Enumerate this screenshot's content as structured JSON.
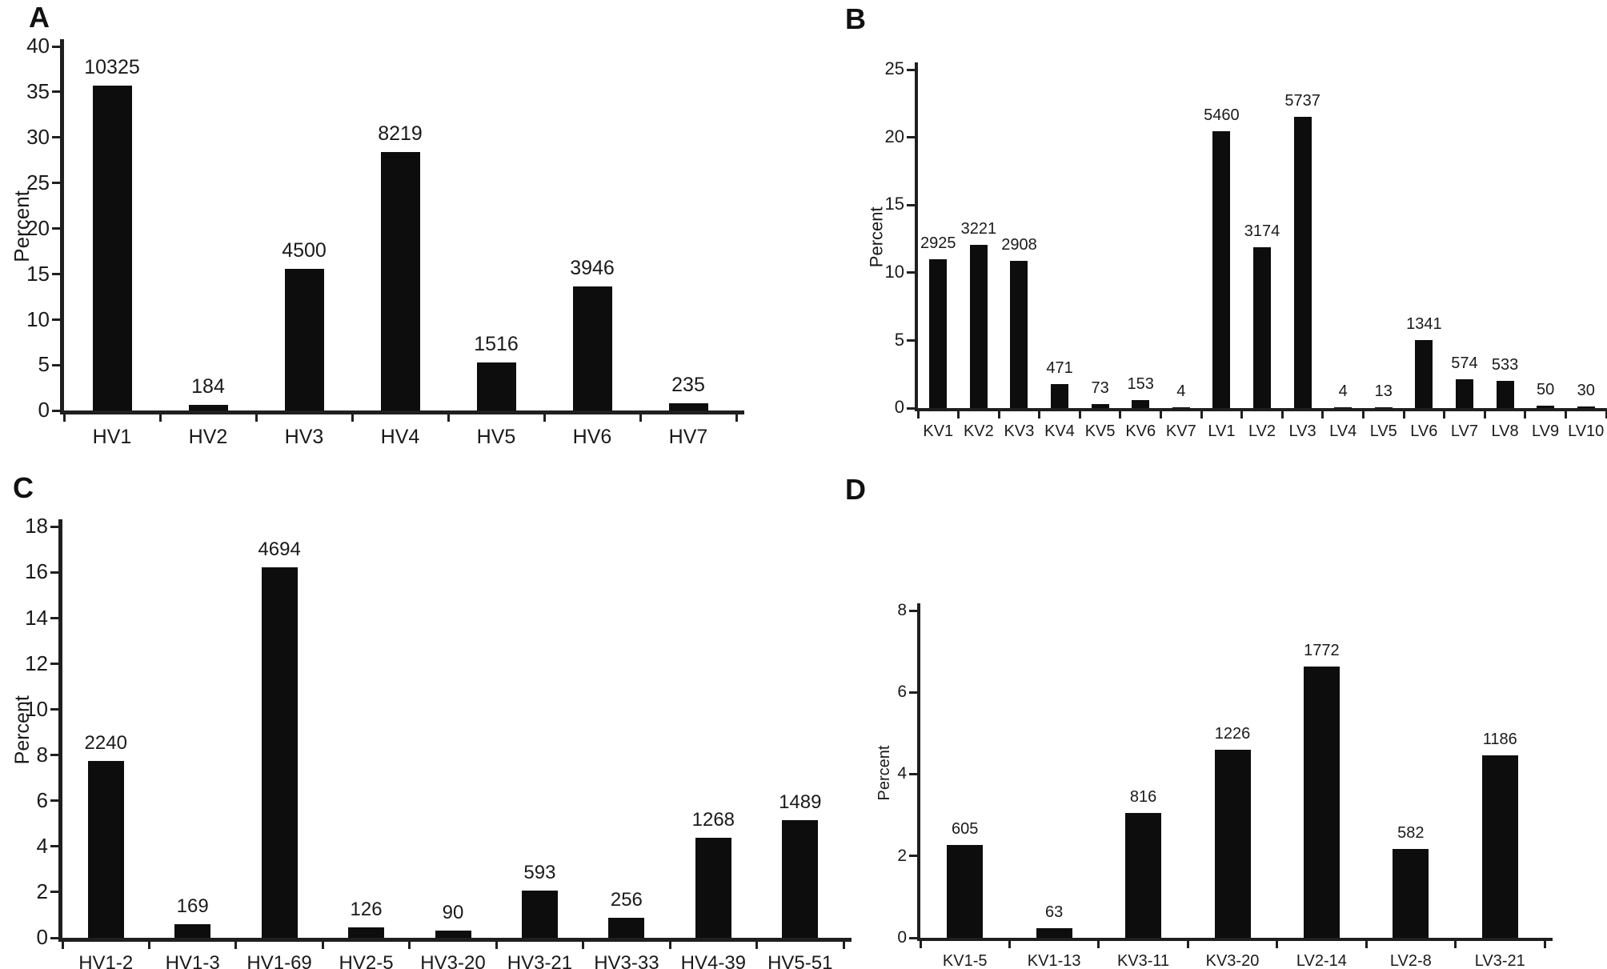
{
  "figure": {
    "background_color": "#ffffff",
    "bar_color": "#0d0d0d",
    "axis_color": "#1f1f1f",
    "text_color": "#1a1a1a"
  },
  "chart_data": [
    {
      "panel_label": "A",
      "type": "bar",
      "title": "",
      "xlabel": "",
      "ylabel": "Percent",
      "ylim": [
        0,
        40
      ],
      "yticks": [
        0,
        5,
        10,
        15,
        20,
        25,
        30,
        35,
        40
      ],
      "grid": false,
      "legend": null,
      "categories": [
        "HV1",
        "HV2",
        "HV3",
        "HV4",
        "HV5",
        "HV6",
        "HV7"
      ],
      "values": [
        35.7,
        0.64,
        15.56,
        28.41,
        5.24,
        13.64,
        0.81
      ],
      "bar_count_labels": [
        "10325",
        "184",
        "4500",
        "8219",
        "1516",
        "3946",
        "235"
      ]
    },
    {
      "panel_label": "B",
      "type": "bar",
      "title": "",
      "xlabel": "",
      "ylabel": "Percent",
      "ylim": [
        0,
        25
      ],
      "yticks": [
        0,
        5,
        10,
        15,
        20,
        25
      ],
      "grid": false,
      "legend": null,
      "categories": [
        "KV1",
        "KV2",
        "KV3",
        "KV4",
        "KV5",
        "KV6",
        "KV7",
        "LV1",
        "LV2",
        "LV3",
        "LV4",
        "LV5",
        "LV6",
        "LV7",
        "LV8",
        "LV9",
        "LV10"
      ],
      "values": [
        10.97,
        12.08,
        10.9,
        1.77,
        0.27,
        0.57,
        0.01,
        20.47,
        11.9,
        21.51,
        0.01,
        0.05,
        5.03,
        2.15,
        2.0,
        0.19,
        0.11
      ],
      "bar_count_labels": [
        "2925",
        "3221",
        "2908",
        "471",
        "73",
        "153",
        "4",
        "5460",
        "3174",
        "5737",
        "4",
        "13",
        "1341",
        "574",
        "533",
        "50",
        "30"
      ]
    },
    {
      "panel_label": "C",
      "type": "bar",
      "title": "",
      "xlabel": "",
      "ylabel": "Percent",
      "ylim": [
        0,
        18
      ],
      "yticks": [
        0,
        2,
        4,
        6,
        8,
        10,
        12,
        14,
        16,
        18
      ],
      "grid": false,
      "legend": null,
      "categories": [
        "HV1-2",
        "HV1-3",
        "HV1-69",
        "HV2-5",
        "HV3-20",
        "HV3-21",
        "HV3-33",
        "HV4-39",
        "HV5-51"
      ],
      "values": [
        7.74,
        0.58,
        16.23,
        0.44,
        0.31,
        2.05,
        0.89,
        4.38,
        5.15
      ],
      "bar_count_labels": [
        "2240",
        "169",
        "4694",
        "126",
        "90",
        "593",
        "256",
        "1268",
        "1489"
      ]
    },
    {
      "panel_label": "D",
      "type": "bar",
      "title": "",
      "xlabel": "",
      "ylabel": "Percent",
      "ylim": [
        0,
        8
      ],
      "yticks": [
        0,
        2,
        4,
        6,
        8
      ],
      "grid": false,
      "legend": null,
      "categories": [
        "KV1-5",
        "KV1-13",
        "KV3-11",
        "KV3-20",
        "LV2-14",
        "LV2-8",
        "LV3-21"
      ],
      "values": [
        2.27,
        0.24,
        3.06,
        4.6,
        6.64,
        2.18,
        4.45
      ],
      "bar_count_labels": [
        "605",
        "63",
        "816",
        "1226",
        "1772",
        "582",
        "1186"
      ]
    }
  ]
}
